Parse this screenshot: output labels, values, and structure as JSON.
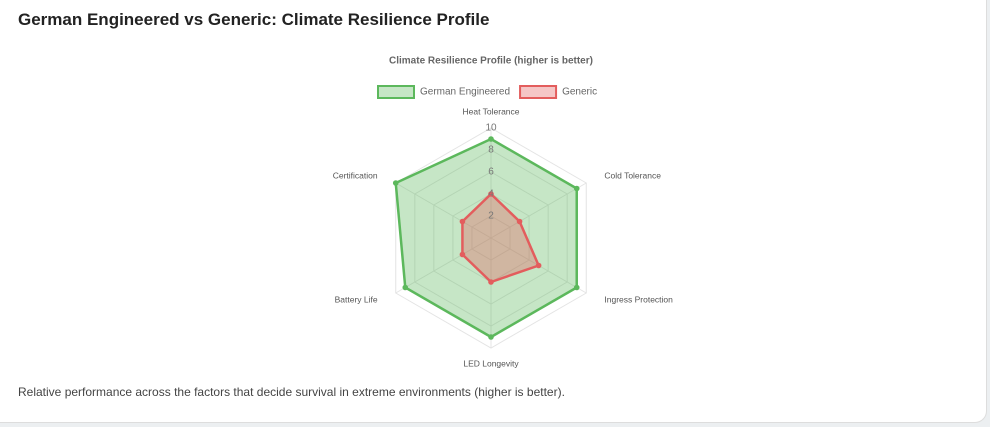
{
  "header": {
    "title": "German Engineered vs Generic: Climate Resilience Profile"
  },
  "chart_data": {
    "type": "radar",
    "title": "Climate Resilience Profile (higher is better)",
    "categories": [
      "Heat Tolerance",
      "Cold Tolerance",
      "Ingress Protection",
      "LED Longevity",
      "Battery Life",
      "Certification"
    ],
    "series": [
      {
        "name": "German Engineered",
        "color": "#5cb85c",
        "values": [
          9,
          9,
          9,
          9,
          9,
          10
        ]
      },
      {
        "name": "Generic",
        "color": "#e35d5d",
        "values": [
          4,
          3,
          5,
          4,
          3,
          3
        ]
      }
    ],
    "rlim": [
      0,
      10
    ],
    "rticks": [
      2,
      4,
      6,
      8,
      10
    ],
    "grid": true,
    "legend": "top"
  },
  "caption": "Relative performance across the factors that decide survival in extreme environments (higher is better)."
}
